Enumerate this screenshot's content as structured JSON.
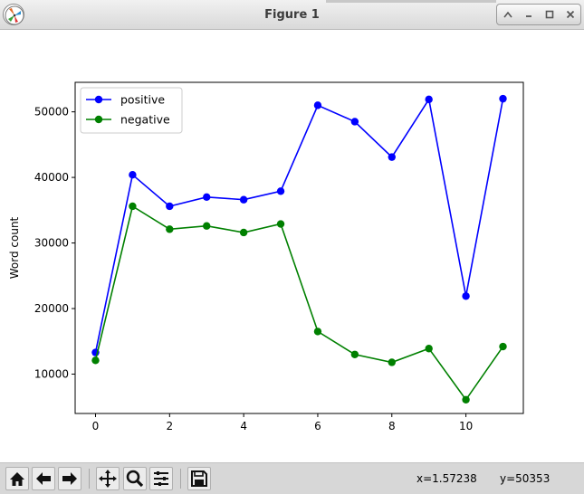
{
  "window": {
    "title": "Figure 1",
    "buttons": [
      "up-icon",
      "minimize-icon",
      "maximize-icon",
      "close-icon"
    ]
  },
  "toolbar": {
    "buttons": [
      "home-icon",
      "back-icon",
      "forward-icon",
      "pan-icon",
      "zoom-icon",
      "configure-subplots-icon",
      "save-icon"
    ],
    "coord_x": "x=1.57238",
    "coord_y": "y=50353"
  },
  "chart_data": {
    "type": "line",
    "title": "",
    "xlabel": "",
    "ylabel": "Word count",
    "xlim": [
      -0.55,
      11.55
    ],
    "ylim": [
      4000,
      54500
    ],
    "xticks": [
      0,
      2,
      4,
      6,
      8,
      10
    ],
    "yticks": [
      10000,
      20000,
      30000,
      40000,
      50000
    ],
    "legend_position": "upper left",
    "grid": false,
    "x": [
      0,
      1,
      2,
      3,
      4,
      5,
      6,
      7,
      8,
      9,
      10,
      11
    ],
    "series": [
      {
        "name": "positive",
        "color": "#0000ff",
        "marker": "circle",
        "values": [
          13300,
          40400,
          35600,
          37000,
          36600,
          37900,
          51000,
          48500,
          43100,
          51900,
          21900,
          52000
        ]
      },
      {
        "name": "negative",
        "color": "#008000",
        "marker": "circle",
        "values": [
          12100,
          35600,
          32100,
          32600,
          31600,
          32900,
          16500,
          13000,
          11800,
          13900,
          6100,
          14200
        ]
      }
    ]
  }
}
